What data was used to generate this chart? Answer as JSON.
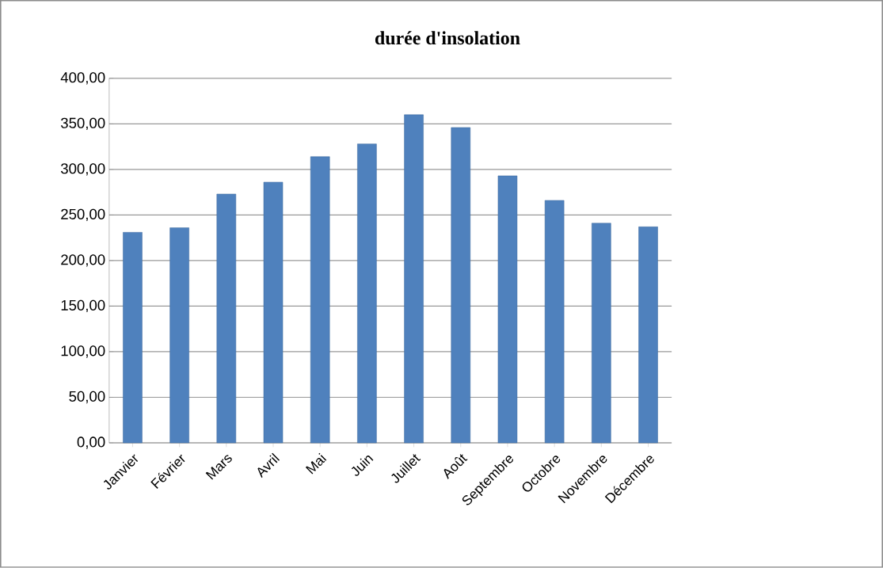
{
  "chart_data": {
    "type": "bar",
    "title": "durée d'insolation",
    "categories": [
      "Janvier",
      "Février",
      "Mars",
      "Avril",
      "Mai",
      "Juin",
      "Juillet",
      "Août",
      "Septembre",
      "Octobre",
      "Novembre",
      "Décembre"
    ],
    "values": [
      231,
      236,
      273,
      286,
      314,
      328,
      360,
      346,
      293,
      266,
      241,
      237
    ],
    "color": "#4f81bd",
    "ylim": [
      0,
      400
    ],
    "yticks": [
      {
        "value": 0,
        "label": "0,00"
      },
      {
        "value": 50,
        "label": "50,00"
      },
      {
        "value": 100,
        "label": "100,00"
      },
      {
        "value": 150,
        "label": "150,00"
      },
      {
        "value": 200,
        "label": "200,00"
      },
      {
        "value": 250,
        "label": "250,00"
      },
      {
        "value": 300,
        "label": "300,00"
      },
      {
        "value": 350,
        "label": "350,00"
      },
      {
        "value": 400,
        "label": "400,00"
      }
    ],
    "grid": "y"
  }
}
